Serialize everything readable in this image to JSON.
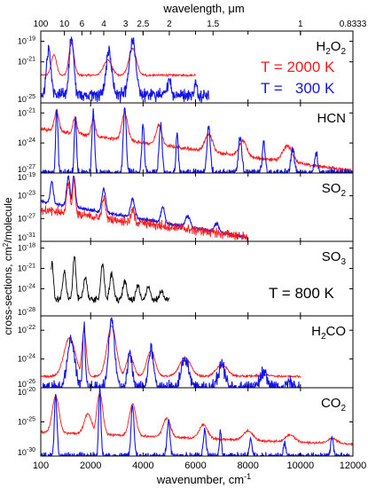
{
  "chart_data": {
    "type": "line",
    "title": "",
    "xlabel": "wavenumber, cm",
    "xlabel_sup": "-1",
    "ylabel": "cross-sections, cm",
    "ylabel_sup": "2",
    "ylabel_suffix": "/molecule",
    "top_axis_label": "wavelength, μm",
    "xlim": [
      100,
      12000
    ],
    "x_ticks": [
      100,
      2000,
      4000,
      6000,
      8000,
      10000,
      12000
    ],
    "x_tick_labels": [
      "100",
      "2000",
      "4000",
      "6000",
      "8000",
      "10000",
      "12000"
    ],
    "top_ticks": [
      {
        "wavenumber": 100,
        "label": "100"
      },
      {
        "wavenumber": 1000,
        "label": "10"
      },
      {
        "wavenumber": 1667,
        "label": "6"
      },
      {
        "wavenumber": 2500,
        "label": "4"
      },
      {
        "wavenumber": 3333,
        "label": "3"
      },
      {
        "wavenumber": 4000,
        "label": "2.5"
      },
      {
        "wavenumber": 5000,
        "label": "2"
      },
      {
        "wavenumber": 6667,
        "label": "1.5"
      },
      {
        "wavenumber": 10000,
        "label": "1"
      },
      {
        "wavenumber": 12000,
        "label": "0.8333"
      }
    ],
    "colors": {
      "hot": "#ff1a1a",
      "cold": "#1414e6",
      "single": "#000000",
      "frame": "#000000"
    },
    "legend": {
      "hot_label": "T = 2000 K",
      "cold_label": "T =   300 K",
      "single_label": "T = 800 K"
    },
    "panels": [
      {
        "molecule": "H",
        "sub": "2",
        "mid": "O",
        "sub2": "2",
        "ylim_exp": [
          -25,
          -18
        ],
        "y_ticks": [
          {
            "exp": -19,
            "label": "10",
            "sup": "-19"
          },
          {
            "exp": -21,
            "label": "10",
            "sup": "-21"
          },
          {
            "exp": -25,
            "label": "10",
            "sup": "-25"
          }
        ],
        "series": [
          {
            "kind": "hot",
            "x_max": 6000,
            "features": [
              [
                600,
                -20.3,
                140
              ],
              [
                1270,
                -19.2,
                140
              ],
              [
                2650,
                -20.8,
                220
              ],
              [
                3600,
                -19.7,
                200
              ]
            ],
            "baseline": -22.3,
            "noise": 0.15
          },
          {
            "kind": "cold",
            "x_max": 6500,
            "features": [
              [
                400,
                -19.8,
                120
              ],
              [
                1270,
                -18.6,
                120
              ],
              [
                2700,
                -20.0,
                150
              ],
              [
                3600,
                -19.0,
                170
              ],
              [
                5000,
                -22.5,
                80
              ],
              [
                6000,
                -23.0,
                60
              ]
            ],
            "baseline": -24.2,
            "noise": 0.9
          }
        ]
      },
      {
        "molecule": "HCN",
        "ylim_exp": [
          -27,
          -20
        ],
        "y_ticks": [
          {
            "exp": -21,
            "label": "10",
            "sup": "-21"
          },
          {
            "exp": -24,
            "label": "10",
            "sup": "-24"
          },
          {
            "exp": -27,
            "label": "10",
            "sup": "-27"
          }
        ],
        "series": [
          {
            "kind": "hot",
            "x_max": 12000,
            "features": [
              [
                700,
                -20.8,
                120
              ],
              [
                1400,
                -21.4,
                100
              ],
              [
                2100,
                -21.6,
                100
              ],
              [
                3300,
                -21.0,
                160
              ],
              [
                4600,
                -22.2,
                150
              ],
              [
                6500,
                -23.1,
                200
              ],
              [
                7800,
                -23.8,
                200
              ],
              [
                9500,
                -24.3,
                250
              ]
            ],
            "baseline": -22.6,
            "slope": -0.00035,
            "noise": 0.25
          },
          {
            "kind": "cold",
            "x_max": 12000,
            "features": [
              [
                712,
                -20.5,
                60
              ],
              [
                1420,
                -21.3,
                60
              ],
              [
                2100,
                -20.9,
                70
              ],
              [
                3300,
                -20.4,
                80
              ],
              [
                4000,
                -22.2,
                70
              ],
              [
                4670,
                -22.0,
                80
              ],
              [
                5300,
                -23.0,
                60
              ],
              [
                6500,
                -22.3,
                90
              ],
              [
                7700,
                -23.3,
                90
              ],
              [
                8600,
                -23.9,
                80
              ],
              [
                9700,
                -24.5,
                90
              ],
              [
                10600,
                -24.9,
                80
              ]
            ],
            "baseline": -27.0,
            "noise": 0.6
          }
        ]
      },
      {
        "molecule": "SO",
        "sub": "2",
        "ylim_exp": [
          -31,
          -19
        ],
        "y_ticks": [
          {
            "exp": -19,
            "label": "10",
            "sup": "-19"
          },
          {
            "exp": -23,
            "label": "10",
            "sup": "-23"
          },
          {
            "exp": -27,
            "label": "10",
            "sup": "-27"
          },
          {
            "exp": -31,
            "label": "10",
            "sup": "-31"
          }
        ],
        "series": [
          {
            "kind": "cold",
            "x_max": 8000,
            "features": [
              [
                520,
                -20.5,
                80
              ],
              [
                1150,
                -19.6,
                90
              ],
              [
                1360,
                -19.4,
                80
              ],
              [
                2500,
                -21.8,
                100
              ],
              [
                3600,
                -23.6,
                110
              ],
              [
                4750,
                -25.0,
                100
              ],
              [
                5700,
                -26.5,
                120
              ],
              [
                6800,
                -27.8,
                110
              ]
            ],
            "baseline": -24.0,
            "slope": -0.0008,
            "noise": 0.4
          },
          {
            "kind": "hot",
            "x_max": 8000,
            "features": [
              [
                1150,
                -20.6,
                90
              ],
              [
                1360,
                -20.2,
                80
              ],
              [
                2500,
                -23.5,
                90
              ],
              [
                3600,
                -25.5,
                90
              ]
            ],
            "baseline": -25.5,
            "slope": -0.0006,
            "noise": 1.2
          }
        ]
      },
      {
        "molecule": "SO",
        "sub": "3",
        "ylim_exp": [
          -28,
          -17
        ],
        "y_ticks": [
          {
            "exp": -18,
            "label": "10",
            "sup": "-18"
          },
          {
            "exp": -21,
            "label": "10",
            "sup": "-21"
          },
          {
            "exp": -24,
            "label": "10",
            "sup": "-24"
          },
          {
            "exp": -28,
            "label": "10",
            "sup": "-28"
          }
        ],
        "series": [
          {
            "kind": "single",
            "x_min": 500,
            "x_max": 5000,
            "features": [
              [
                530,
                -20.3,
                70
              ],
              [
                1000,
                -21.5,
                90
              ],
              [
                1380,
                -19.0,
                80
              ],
              [
                1800,
                -22.2,
                90
              ],
              [
                2450,
                -20.3,
                90
              ],
              [
                2800,
                -21.8,
                100
              ],
              [
                3300,
                -22.9,
                100
              ],
              [
                3800,
                -23.4,
                90
              ],
              [
                4200,
                -23.8,
                100
              ],
              [
                4700,
                -24.4,
                90
              ]
            ],
            "baseline": -25.6,
            "noise": 0.7
          }
        ]
      },
      {
        "molecule": "H",
        "sub": "2",
        "mid": "CO",
        "ylim_exp": [
          -26,
          -21
        ],
        "y_ticks": [
          {
            "exp": -22,
            "label": "10",
            "sup": "-22"
          },
          {
            "exp": -24,
            "label": "10",
            "sup": "-24"
          },
          {
            "exp": -26,
            "label": "10",
            "sup": "-26"
          }
        ],
        "series": [
          {
            "kind": "hot",
            "x_max": 10000,
            "features": [
              [
                1200,
                -22.5,
                300
              ],
              [
                1750,
                -22.1,
                120
              ],
              [
                2800,
                -21.7,
                250
              ],
              [
                3500,
                -23.8,
                200
              ],
              [
                4300,
                -23.4,
                220
              ],
              [
                5600,
                -23.9,
                300
              ],
              [
                7000,
                -24.4,
                300
              ],
              [
                8600,
                -25.1,
                300
              ]
            ],
            "baseline": -25.2,
            "noise": 0.1
          },
          {
            "kind": "cold",
            "x_max": 10000,
            "features": [
              [
                1250,
                -22.6,
                200
              ],
              [
                1745,
                -21.7,
                70
              ],
              [
                2800,
                -21.3,
                160
              ],
              [
                3500,
                -23.5,
                120
              ],
              [
                4300,
                -23.3,
                140
              ],
              [
                5600,
                -23.9,
                200
              ],
              [
                7000,
                -24.5,
                200
              ],
              [
                8600,
                -25.0,
                180
              ],
              [
                9600,
                -25.6,
                150
              ]
            ],
            "baseline": -26.0,
            "noise": 0.7
          }
        ]
      },
      {
        "molecule": "CO",
        "sub": "2",
        "ylim_exp": [
          -30,
          -20
        ],
        "y_ticks": [
          {
            "exp": -20,
            "label": "10",
            "sup": "-20"
          },
          {
            "exp": -25,
            "label": "10",
            "sup": "-25"
          },
          {
            "exp": -30,
            "label": "10",
            "sup": "-30"
          }
        ],
        "series": [
          {
            "kind": "hot",
            "x_max": 12000,
            "features": [
              [
                667,
                -21.2,
                180
              ],
              [
                1900,
                -23.8,
                200
              ],
              [
                2349,
                -20.8,
                160
              ],
              [
                3600,
                -22.4,
                180
              ],
              [
                4900,
                -24.5,
                200
              ],
              [
                6300,
                -25.4,
                220
              ],
              [
                8000,
                -26.3,
                250
              ],
              [
                9600,
                -26.9,
                250
              ],
              [
                11200,
                -27.4,
                250
              ]
            ],
            "baseline": -26.5,
            "slope": -0.00015,
            "noise": 0.25
          },
          {
            "kind": "cold",
            "x_max": 12000,
            "features": [
              [
                667,
                -21.0,
                70
              ],
              [
                2349,
                -20.3,
                60
              ],
              [
                3600,
                -22.5,
                80
              ],
              [
                4970,
                -24.8,
                80
              ],
              [
                6350,
                -26.2,
                70
              ],
              [
                6950,
                -26.5,
                60
              ],
              [
                8100,
                -27.4,
                70
              ],
              [
                9400,
                -28.0,
                60
              ],
              [
                11200,
                -27.0,
                70
              ]
            ],
            "baseline": -30.0,
            "noise": 0.7
          }
        ]
      }
    ]
  }
}
